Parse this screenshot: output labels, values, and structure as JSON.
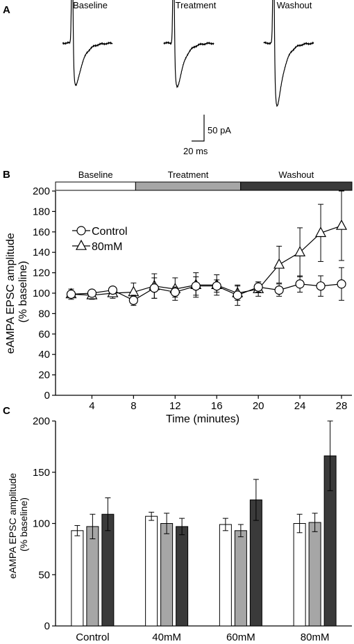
{
  "panels": {
    "a": "A",
    "b": "B",
    "c": "C"
  },
  "traces": {
    "labels": [
      "Baseline",
      "Treatment",
      "Washout"
    ],
    "peaks": [
      1.0,
      1.03,
      1.47
    ],
    "scale_y": "50 pA",
    "scale_x": "20 ms"
  },
  "colors": {
    "baseline": "#ffffff",
    "treatment": "#a6a6a6",
    "washout": "#3a3a3a",
    "ink": "#000000"
  },
  "chart_data": [
    {
      "type": "line",
      "xlabel": "Time (minutes)",
      "ylabel": [
        "eAMPA EPSC amplitude",
        "(% baseline)"
      ],
      "xlim": [
        0.5,
        29
      ],
      "ylim": [
        0,
        200
      ],
      "xticks": [
        4,
        8,
        12,
        16,
        20,
        24,
        28
      ],
      "yticks": [
        0,
        20,
        40,
        60,
        80,
        100,
        120,
        140,
        160,
        180,
        200
      ],
      "phase_bar": [
        {
          "label": "Baseline",
          "start": 0.5,
          "end": 8.2,
          "color": "#ffffff"
        },
        {
          "label": "Treatment",
          "start": 8.2,
          "end": 18.3,
          "color": "#a6a6a6"
        },
        {
          "label": "Washout",
          "start": 18.3,
          "end": 29,
          "color": "#3a3a3a"
        }
      ],
      "legend_position": "upper-left",
      "series": [
        {
          "name": "Control",
          "marker": "circle",
          "x": [
            2,
            4,
            6,
            8,
            10,
            12,
            14,
            16,
            18,
            20,
            22,
            24,
            26,
            28
          ],
          "y": [
            99,
            100,
            103,
            93,
            105,
            101,
            107,
            107,
            98,
            106,
            103,
            109,
            107,
            109
          ],
          "err": [
            3,
            3,
            3,
            5,
            10,
            5,
            9,
            6,
            10,
            5,
            6,
            8,
            10,
            16
          ]
        },
        {
          "name": "80mM",
          "marker": "triangle",
          "x": [
            2,
            4,
            6,
            8,
            10,
            12,
            14,
            16,
            18,
            20,
            22,
            24,
            26,
            28
          ],
          "y": [
            99,
            98,
            100,
            101,
            107,
            104,
            108,
            108,
            100,
            104,
            128,
            140,
            159,
            166
          ],
          "err": [
            5,
            4,
            5,
            9,
            12,
            11,
            12,
            10,
            7,
            7,
            18,
            24,
            28,
            34
          ]
        }
      ]
    },
    {
      "type": "bar",
      "ylabel": [
        "eAMPA EPSC amplitude",
        "(% baseline)"
      ],
      "ylim": [
        0,
        200
      ],
      "yticks": [
        0,
        50,
        100,
        150,
        200
      ],
      "categories": [
        "Control",
        "40mM",
        "60mM",
        "80mM"
      ],
      "series": [
        {
          "values": [
            93,
            107,
            99,
            100
          ],
          "err": [
            5,
            4,
            6,
            9
          ],
          "color": "#ffffff"
        },
        {
          "values": [
            97,
            100,
            93,
            101
          ],
          "err": [
            12,
            10,
            6,
            9
          ],
          "color": "#a6a6a6"
        },
        {
          "values": [
            109,
            97,
            123,
            166
          ],
          "err": [
            16,
            8,
            20,
            34
          ],
          "color": "#3a3a3a"
        }
      ]
    }
  ]
}
